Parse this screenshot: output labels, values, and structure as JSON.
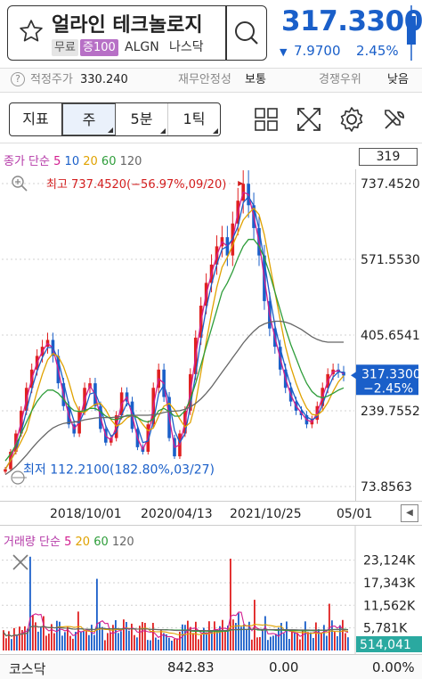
{
  "header": {
    "stock_name": "얼라인 테크놀로지",
    "tag_free": "무료",
    "tag_margin": "증100",
    "ticker": "ALGN",
    "market": "나스닥",
    "price": "317.3300",
    "change": "7.9700",
    "change_pct": "2.45%",
    "change_direction_icon": "down-triangle-icon"
  },
  "info_row": {
    "fair_price_label": "적정주가",
    "fair_price_value": "330.240",
    "financial_label": "재무안정성",
    "financial_value": "보통",
    "competition_label": "경쟁우위",
    "competition_value": "낮음"
  },
  "toolbar": {
    "indicator_label": "지표",
    "period_buttons": [
      "주",
      "5분",
      "1틱"
    ],
    "selected_period": "주",
    "icons": [
      "grid-layout-icon",
      "fullscreen-icon",
      "gear-icon",
      "tools-icon"
    ]
  },
  "chart": {
    "legend_prefix": "종가 단순",
    "ma_labels": [
      "5",
      "10",
      "20",
      "60",
      "120"
    ],
    "ma_colors": [
      "#d31e8f",
      "#1a5fc9",
      "#e0a200",
      "#2e9d3a",
      "#666666"
    ],
    "value_box": "319",
    "high_label": "최고 737.4520(−56.97%,09/20)",
    "low_label": "최저 112.2100(182.80%,03/27)",
    "current_price_tag": "317.3300",
    "current_pct_tag": "−2.45%",
    "y_axis_labels": [
      "737.4520",
      "571.5530",
      "405.6541",
      "239.7552",
      "73.8563"
    ],
    "x_axis_labels": [
      "2018/10/01",
      "2020/04/13",
      "2021/10/25",
      "05/01"
    ],
    "scroll_icon": "chevron-left-icon"
  },
  "chart_data": {
    "type": "line",
    "title": "",
    "ylim": [
      73.8563,
      737.452
    ],
    "y_ticks": [
      737.452,
      571.553,
      405.6541,
      239.7552,
      73.8563
    ],
    "x_ticks": [
      "2018/10/01",
      "2020/04/13",
      "2021/10/25",
      "05/01"
    ],
    "series": [
      {
        "name": "5",
        "values": [
          112,
          150,
          190,
          240,
          290,
          330,
          360,
          380,
          395,
          360,
          300,
          250,
          210,
          190,
          240,
          290,
          300,
          250,
          200,
          170,
          180,
          230,
          280,
          260,
          200,
          160,
          150,
          210,
          290,
          330,
          270,
          180,
          140,
          190,
          240,
          320,
          400,
          470,
          520,
          560,
          600,
          620,
          580,
          650,
          700,
          737,
          690,
          640,
          580,
          480,
          420,
          380,
          330,
          290,
          260,
          240,
          230,
          210,
          220,
          250,
          290,
          320,
          330,
          325,
          317
        ]
      },
      {
        "name": "60",
        "values": [
          130,
          145,
          165,
          190,
          215,
          240,
          260,
          275,
          285,
          285,
          278,
          265,
          250,
          240,
          238,
          240,
          245,
          245,
          238,
          228,
          222,
          220,
          225,
          230,
          230,
          225,
          218,
          215,
          222,
          240,
          245,
          238,
          228,
          228,
          240,
          265,
          300,
          340,
          380,
          420,
          460,
          500,
          520,
          545,
          575,
          600,
          615,
          615,
          600,
          575,
          540,
          500,
          460,
          420,
          385,
          355,
          325,
          300,
          282,
          272,
          268,
          272,
          278,
          285,
          290
        ]
      },
      {
        "name": "120",
        "values": [
          100,
          108,
          118,
          130,
          143,
          157,
          170,
          182,
          193,
          202,
          208,
          212,
          214,
          215,
          217,
          220,
          222,
          224,
          225,
          225,
          225,
          226,
          227,
          228,
          229,
          230,
          230,
          230,
          231,
          233,
          236,
          238,
          239,
          240,
          243,
          248,
          256,
          266,
          278,
          292,
          308,
          324,
          340,
          356,
          372,
          388,
          402,
          414,
          424,
          430,
          434,
          436,
          436,
          434,
          430,
          424,
          418,
          410,
          402,
          396,
          392,
          390,
          390,
          390,
          390
        ]
      }
    ]
  },
  "volume": {
    "legend_prefix": "거래량 단순",
    "ma_labels": [
      "5",
      "20",
      "60",
      "120"
    ],
    "ma_colors": [
      "#d31e8f",
      "#e0a200",
      "#2e9d3a",
      "#666666"
    ],
    "y_axis_labels": [
      "23,124K",
      "17,343K",
      "11,562K",
      "5,781K"
    ],
    "current_tag": "514,041",
    "cross_icon": "crosshair-toggle-icon"
  },
  "footer": {
    "index_name": "코스닥",
    "index_value": "842.83",
    "index_change": "0.00",
    "index_pct": "0.00%"
  }
}
